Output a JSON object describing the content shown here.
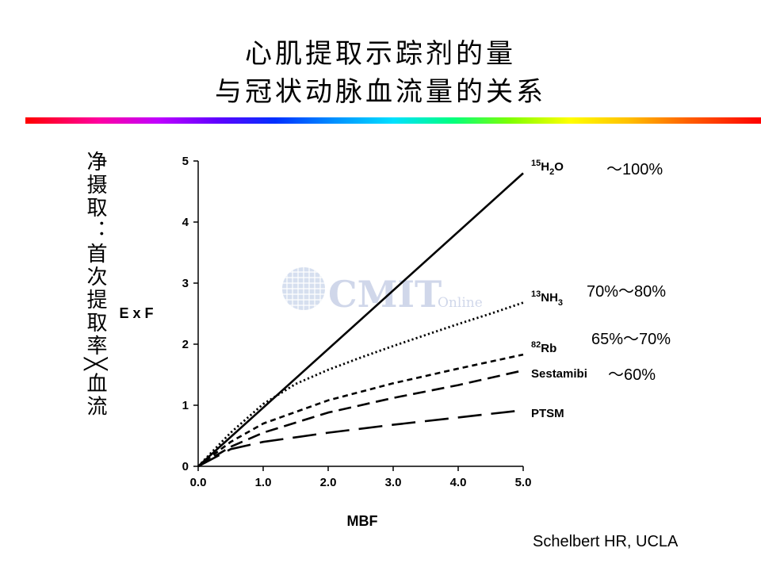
{
  "slide": {
    "title_line1": "心肌提取示踪剂的量",
    "title_line2": "与冠状动脉血流量的关系",
    "side_label": "净摄取：首次提取率╳血流",
    "credit": "Schelbert HR, UCLA",
    "watermark": {
      "main": "CMIT",
      "sub": "Online"
    },
    "accent_colors": [
      "#ff0000",
      "#c000ff",
      "#0030ff",
      "#00e0ff",
      "#80ff00",
      "#ffff00",
      "#ff6000"
    ]
  },
  "chart_data": {
    "type": "line",
    "title": "",
    "xlabel": "MBF",
    "ylabel": "E x F",
    "xlim": [
      0,
      5
    ],
    "ylim": [
      0,
      5
    ],
    "xticks": [
      "0.0",
      "1.0",
      "2.0",
      "3.0",
      "4.0",
      "5.0"
    ],
    "yticks": [
      "0",
      "1",
      "2",
      "3",
      "4",
      "5"
    ],
    "grid": false,
    "series": [
      {
        "name": "H2O",
        "prefix": "15",
        "base": "H",
        "sub": "2",
        "suffix": "O",
        "extraction": "～100%",
        "dash": "solid",
        "x": [
          0,
          5.0
        ],
        "y": [
          0,
          4.8
        ]
      },
      {
        "name": "NH3",
        "prefix": "13",
        "base": "NH",
        "sub": "3",
        "suffix": "",
        "extraction": "70%～80%",
        "dash": "dotted",
        "x": [
          0,
          0.5,
          1.0,
          1.5,
          2.0,
          2.5,
          3.0,
          3.5,
          4.0,
          4.5,
          5.0
        ],
        "y": [
          0,
          0.55,
          1.02,
          1.35,
          1.58,
          1.78,
          1.97,
          2.15,
          2.33,
          2.5,
          2.68
        ]
      },
      {
        "name": "Rb",
        "prefix": "82",
        "base": "Rb",
        "sub": "",
        "suffix": "",
        "extraction": "65%～70%",
        "dash": "short-dash",
        "x": [
          0,
          0.5,
          1.0,
          2.0,
          3.0,
          4.0,
          5.0
        ],
        "y": [
          0,
          0.4,
          0.7,
          1.08,
          1.36,
          1.6,
          1.83
        ]
      },
      {
        "name": "Sestamibi",
        "prefix": "",
        "base": "Sestamibi",
        "sub": "",
        "suffix": "",
        "extraction": "～60%",
        "dash": "medium-dash",
        "x": [
          0,
          0.5,
          1.0,
          2.0,
          3.0,
          4.0,
          5.0
        ],
        "y": [
          0,
          0.32,
          0.55,
          0.88,
          1.12,
          1.33,
          1.57
        ]
      },
      {
        "name": "PTSM",
        "prefix": "",
        "base": "PTSM",
        "sub": "",
        "suffix": "",
        "extraction": "",
        "dash": "long-dash",
        "x": [
          0,
          0.5,
          1.0,
          2.0,
          3.0,
          4.0,
          5.0
        ],
        "y": [
          0,
          0.28,
          0.4,
          0.55,
          0.68,
          0.8,
          0.92
        ]
      }
    ]
  }
}
